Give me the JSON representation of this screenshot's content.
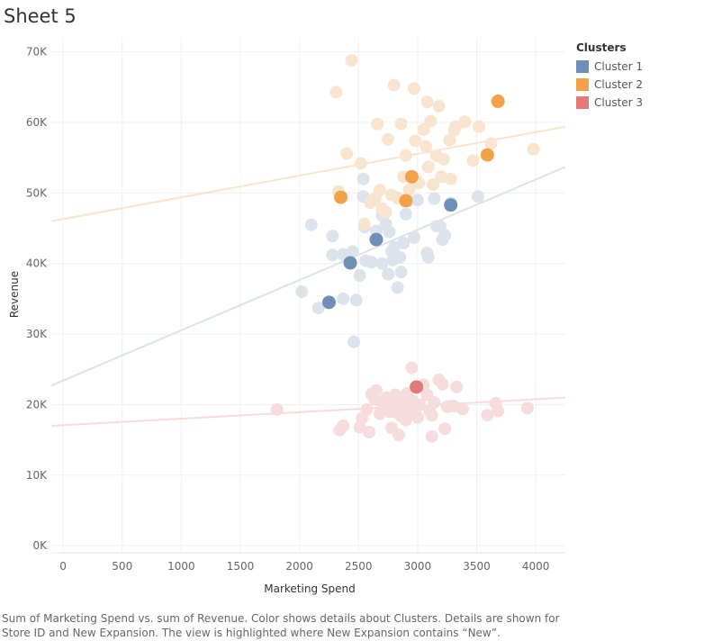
{
  "sheet": {
    "title": "Sheet 5"
  },
  "caption": "Sum of Marketing Spend vs. sum of Revenue.  Color shows details about Clusters.  Details are shown for Store ID and New Expansion. The view is highlighted where New Expansion contains “New”.",
  "legend": {
    "title": "Clusters",
    "items": [
      {
        "label": "Cluster 1",
        "color": "#6f8fb6"
      },
      {
        "label": "Cluster 2",
        "color": "#f3a24b"
      },
      {
        "label": "Cluster 3",
        "color": "#e37a78"
      }
    ]
  },
  "chart_data": {
    "type": "scatter",
    "xlabel": "Marketing Spend",
    "ylabel": "Revenue",
    "xlim": [
      -100,
      4250
    ],
    "ylim": [
      -1000,
      72000
    ],
    "x_ticks": [
      0,
      500,
      1000,
      1500,
      2000,
      2500,
      3000,
      3500,
      4000
    ],
    "x_tick_labels": [
      "0",
      "500",
      "1000",
      "1500",
      "2000",
      "2500",
      "3000",
      "3500",
      "4000"
    ],
    "y_ticks": [
      0,
      10000,
      20000,
      30000,
      40000,
      50000,
      60000,
      70000
    ],
    "y_tick_labels": [
      "0K",
      "10K",
      "20K",
      "30K",
      "40K",
      "50K",
      "60K",
      "70K"
    ],
    "grid": true,
    "legend_position": "right",
    "series": [
      {
        "name": "Cluster 1",
        "color": "#6f8fb6",
        "faded_color": "#dce3ec",
        "trend": [
          [
            -100,
            22700
          ],
          [
            4250,
            53700
          ]
        ],
        "highlighted": [
          [
            2250,
            34500
          ],
          [
            2430,
            40100
          ],
          [
            2650,
            43400
          ],
          [
            3280,
            48300
          ]
        ],
        "points": [
          [
            2020,
            36000
          ],
          [
            2100,
            45500
          ],
          [
            2160,
            33700
          ],
          [
            2280,
            41200
          ],
          [
            2280,
            43900
          ],
          [
            2370,
            41300
          ],
          [
            2370,
            35000
          ],
          [
            2450,
            41700
          ],
          [
            2460,
            28900
          ],
          [
            2480,
            34800
          ],
          [
            2510,
            38300
          ],
          [
            2540,
            52000
          ],
          [
            2540,
            49500
          ],
          [
            2550,
            45200
          ],
          [
            2560,
            40400
          ],
          [
            2610,
            40200
          ],
          [
            2650,
            44600
          ],
          [
            2700,
            46800
          ],
          [
            2700,
            40000
          ],
          [
            2730,
            45600
          ],
          [
            2750,
            38500
          ],
          [
            2760,
            44500
          ],
          [
            2780,
            41700
          ],
          [
            2790,
            40500
          ],
          [
            2800,
            42300
          ],
          [
            2830,
            36600
          ],
          [
            2850,
            40900
          ],
          [
            2860,
            38800
          ],
          [
            2880,
            42900
          ],
          [
            2900,
            47000
          ],
          [
            2920,
            48900
          ],
          [
            2970,
            43700
          ],
          [
            3000,
            49000
          ],
          [
            3080,
            41500
          ],
          [
            3090,
            40900
          ],
          [
            3140,
            49200
          ],
          [
            3160,
            45300
          ],
          [
            3190,
            45300
          ],
          [
            3210,
            43400
          ],
          [
            3230,
            44000
          ],
          [
            3280,
            48600
          ],
          [
            3510,
            49500
          ]
        ]
      },
      {
        "name": "Cluster 2",
        "color": "#f3a24b",
        "faded_color": "#f9e4cf",
        "trend": [
          [
            -100,
            46000
          ],
          [
            4250,
            59400
          ]
        ],
        "highlighted": [
          [
            2350,
            49400
          ],
          [
            2900,
            48900
          ],
          [
            2950,
            52300
          ],
          [
            3590,
            55400
          ],
          [
            3680,
            63000
          ]
        ],
        "points": [
          [
            2310,
            64300
          ],
          [
            2330,
            50200
          ],
          [
            2400,
            55600
          ],
          [
            2440,
            68800
          ],
          [
            2520,
            54200
          ],
          [
            2550,
            45600
          ],
          [
            2600,
            48600
          ],
          [
            2640,
            49200
          ],
          [
            2660,
            59800
          ],
          [
            2680,
            50400
          ],
          [
            2700,
            47800
          ],
          [
            2730,
            47300
          ],
          [
            2750,
            57600
          ],
          [
            2780,
            49700
          ],
          [
            2800,
            65300
          ],
          [
            2830,
            49300
          ],
          [
            2860,
            59800
          ],
          [
            2880,
            52300
          ],
          [
            2900,
            55300
          ],
          [
            2930,
            50500
          ],
          [
            2970,
            64800
          ],
          [
            2980,
            57400
          ],
          [
            3010,
            51400
          ],
          [
            3050,
            59000
          ],
          [
            3070,
            56600
          ],
          [
            3080,
            62900
          ],
          [
            3090,
            53700
          ],
          [
            3110,
            60200
          ],
          [
            3130,
            51200
          ],
          [
            3160,
            55300
          ],
          [
            3180,
            62300
          ],
          [
            3200,
            52300
          ],
          [
            3220,
            54800
          ],
          [
            3270,
            57500
          ],
          [
            3280,
            52000
          ],
          [
            3310,
            58900
          ],
          [
            3320,
            59400
          ],
          [
            3400,
            60100
          ],
          [
            3470,
            54600
          ],
          [
            3520,
            59400
          ],
          [
            3620,
            57000
          ],
          [
            3980,
            56200
          ]
        ]
      },
      {
        "name": "Cluster 3",
        "color": "#e37a78",
        "faded_color": "#f6dcdc",
        "trend": [
          [
            -100,
            17000
          ],
          [
            4250,
            21000
          ]
        ],
        "highlighted": [
          [
            2990,
            22500
          ]
        ],
        "points": [
          [
            1810,
            19300
          ],
          [
            2340,
            16400
          ],
          [
            2370,
            17000
          ],
          [
            2510,
            16800
          ],
          [
            2530,
            18100
          ],
          [
            2570,
            19300
          ],
          [
            2590,
            16100
          ],
          [
            2610,
            21500
          ],
          [
            2640,
            20700
          ],
          [
            2650,
            22000
          ],
          [
            2680,
            18700
          ],
          [
            2700,
            20300
          ],
          [
            2720,
            19700
          ],
          [
            2740,
            21000
          ],
          [
            2760,
            19000
          ],
          [
            2780,
            16700
          ],
          [
            2790,
            20300
          ],
          [
            2810,
            21400
          ],
          [
            2830,
            18800
          ],
          [
            2840,
            15700
          ],
          [
            2860,
            18400
          ],
          [
            2870,
            20400
          ],
          [
            2890,
            19900
          ],
          [
            2900,
            17800
          ],
          [
            2910,
            21600
          ],
          [
            2920,
            18700
          ],
          [
            2950,
            25200
          ],
          [
            2960,
            20500
          ],
          [
            2980,
            19100
          ],
          [
            3000,
            18200
          ],
          [
            3020,
            20000
          ],
          [
            3050,
            22800
          ],
          [
            3080,
            21400
          ],
          [
            3100,
            19000
          ],
          [
            3120,
            18500
          ],
          [
            3120,
            15500
          ],
          [
            3140,
            20300
          ],
          [
            3180,
            23500
          ],
          [
            3210,
            22900
          ],
          [
            3230,
            16600
          ],
          [
            3250,
            19700
          ],
          [
            3300,
            19800
          ],
          [
            3330,
            22500
          ],
          [
            3380,
            19400
          ],
          [
            3590,
            18500
          ],
          [
            3660,
            20200
          ],
          [
            3680,
            19100
          ],
          [
            3930,
            19500
          ]
        ]
      }
    ]
  }
}
